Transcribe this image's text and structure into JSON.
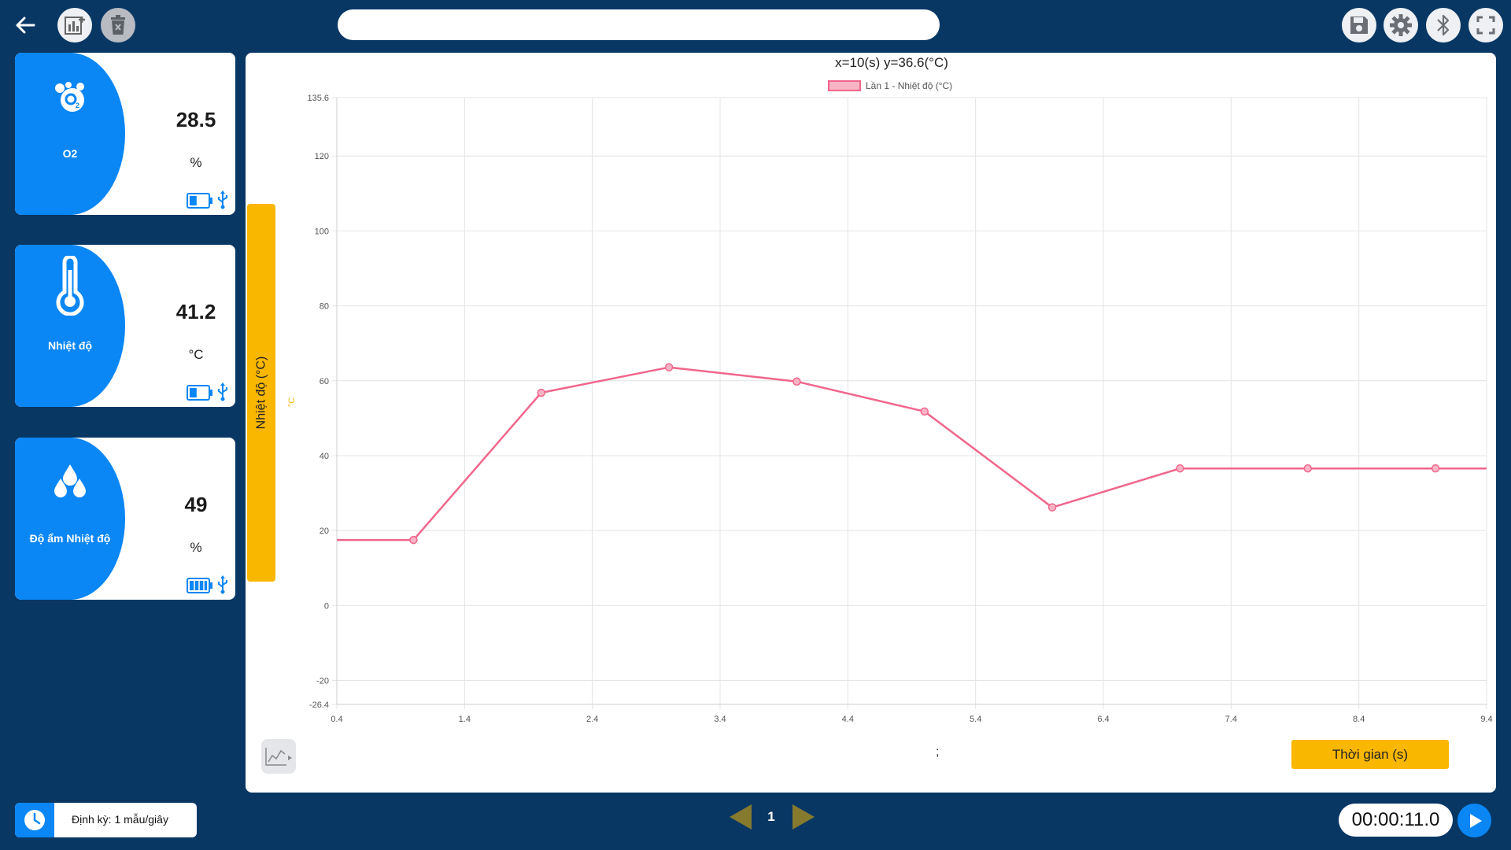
{
  "toolbar": {
    "search_value": "",
    "back_icon": "arrow-left-icon",
    "add_chart_icon": "chart-add-icon",
    "delete_icon": "trash-icon",
    "save_icon": "save-icon",
    "settings_icon": "gear-icon",
    "bluetooth_icon": "bluetooth-icon",
    "fullscreen_icon": "fullscreen-icon"
  },
  "sensors": [
    {
      "name": "O2",
      "value": "28.5",
      "unit": "%",
      "icon": "o2-bubble-icon",
      "battery_level": 0.4
    },
    {
      "name": "Nhiệt độ",
      "value": "41.2",
      "unit": "°C",
      "icon": "thermometer-icon",
      "battery_level": 0.4
    },
    {
      "name": "Độ ẩm Nhiệt độ",
      "value": "49",
      "unit": "%",
      "icon": "water-drops-icon",
      "battery_level": 1.0
    }
  ],
  "chart": {
    "cursor_readout": "x=10(s) y=36.6(°C)",
    "y_axis_button": "Nhiệt độ (°C)",
    "x_axis_button": "Thời gian (s)",
    "semicolon": ";"
  },
  "chart_data": {
    "type": "line",
    "legend": "Lần 1 - Nhiệt độ (°C)",
    "legend_position": "top-center",
    "ylabel": "°C",
    "xlim": [
      0.4,
      9.4
    ],
    "ylim": [
      -26.4,
      135.6
    ],
    "x_ticks": [
      "0.4",
      "1.4",
      "2.4",
      "3.4",
      "4.4",
      "5.4",
      "6.4",
      "7.4",
      "8.4",
      "9.4"
    ],
    "y_ticks": [
      "135.6",
      "120",
      "100",
      "80",
      "60",
      "40",
      "20",
      "0",
      "-20",
      "-26.4"
    ],
    "grid": true,
    "line_color": "#f0668a",
    "series": [
      {
        "name": "Lần 1 - Nhiệt độ (°C)",
        "points": [
          [
            0.4,
            17.5
          ],
          [
            1,
            17.5
          ],
          [
            2,
            56.8
          ],
          [
            3,
            63.6
          ],
          [
            4,
            59.8
          ],
          [
            5,
            51.8
          ],
          [
            6,
            26.2
          ],
          [
            7,
            36.6
          ],
          [
            8,
            36.6
          ],
          [
            9,
            36.6
          ],
          [
            9.4,
            36.6
          ]
        ],
        "markers_at_x": [
          1,
          2,
          3,
          4,
          5,
          6,
          7,
          8,
          9
        ]
      }
    ]
  },
  "bottom": {
    "period_label": "Định kỳ: 1 mẫu/giây",
    "page_number": "1",
    "timer": "00:00:11.0"
  },
  "colors": {
    "background": "#083764",
    "accent_blue": "#0a86f5",
    "accent_yellow": "#f9b700",
    "pager_arrow": "#857a2e"
  }
}
